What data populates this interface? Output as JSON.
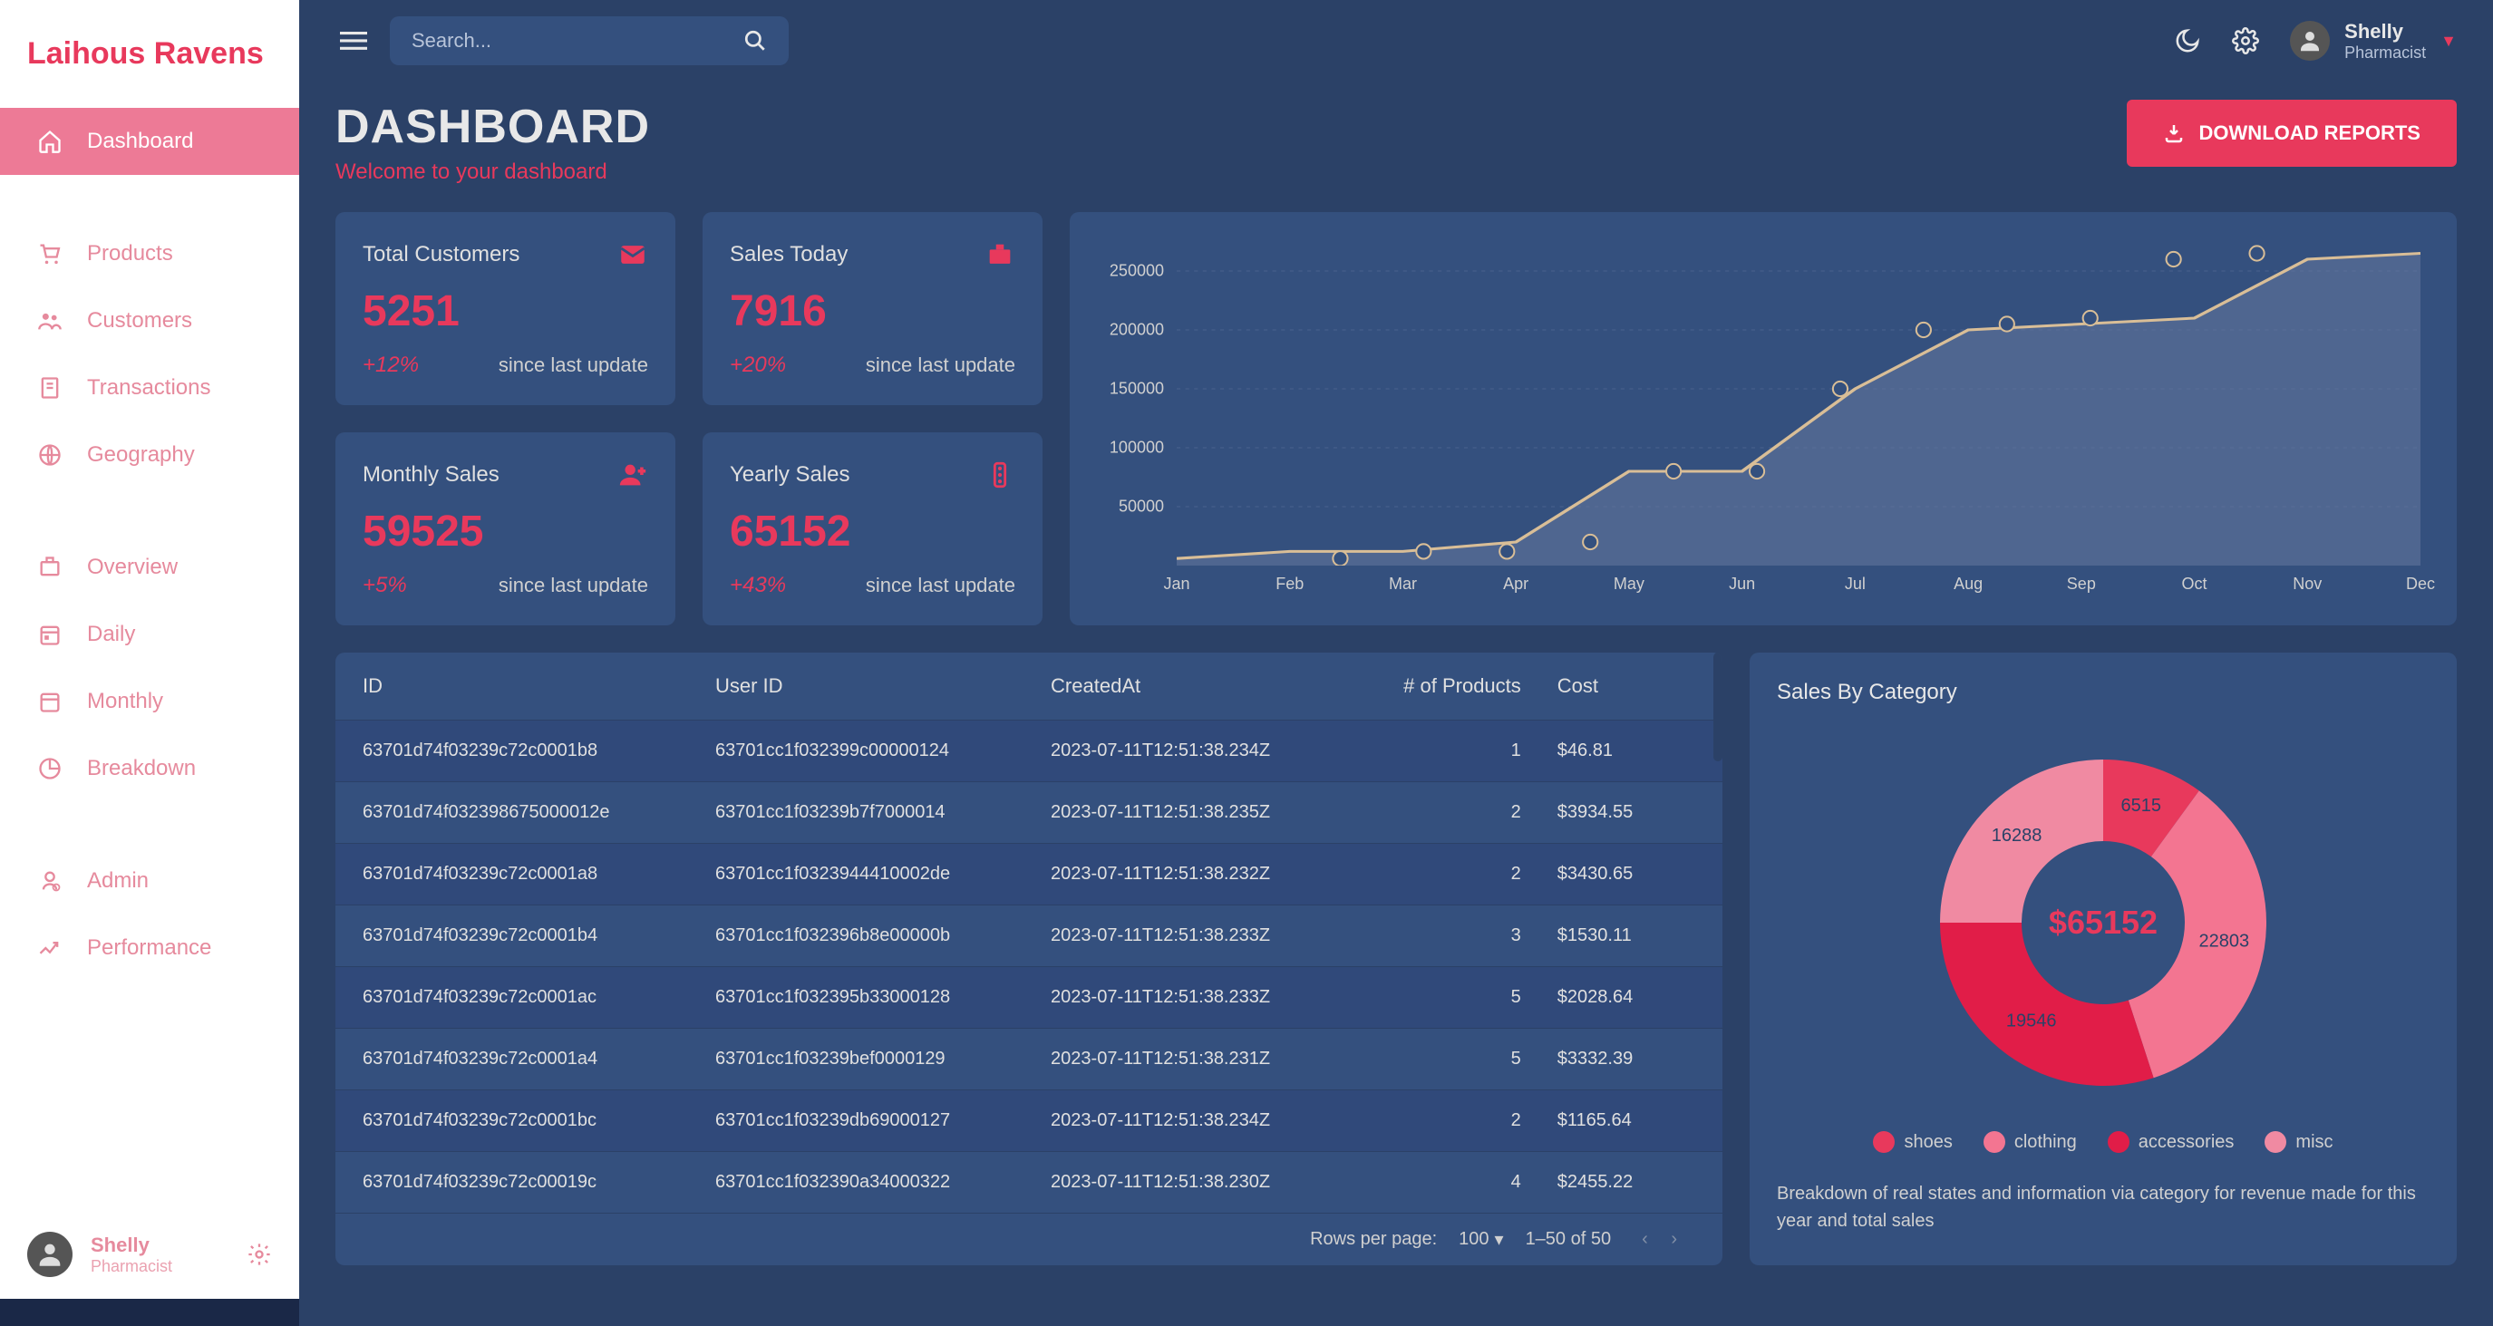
{
  "brand": "Laihous Ravens",
  "search": {
    "placeholder": "Search..."
  },
  "user": {
    "name": "Shelly",
    "role": "Pharmacist"
  },
  "nav": {
    "items": [
      {
        "label": "Dashboard",
        "icon": "home",
        "active": true
      },
      {
        "label": "Products",
        "icon": "cart"
      },
      {
        "label": "Customers",
        "icon": "people"
      },
      {
        "label": "Transactions",
        "icon": "receipt"
      },
      {
        "label": "Geography",
        "icon": "globe"
      },
      {
        "label": "Overview",
        "icon": "register"
      },
      {
        "label": "Daily",
        "icon": "calendar-today"
      },
      {
        "label": "Monthly",
        "icon": "calendar-month"
      },
      {
        "label": "Breakdown",
        "icon": "pie"
      },
      {
        "label": "Admin",
        "icon": "admin"
      },
      {
        "label": "Performance",
        "icon": "trend"
      }
    ],
    "spacerAfter": [
      0,
      4,
      8
    ]
  },
  "header": {
    "title": "DASHBOARD",
    "subtitle": "Welcome to your dashboard",
    "download": "DOWNLOAD REPORTS"
  },
  "stats": [
    {
      "label": "Total Customers",
      "value": "5251",
      "change": "+12%",
      "since": "since last update",
      "icon": "mail"
    },
    {
      "label": "Sales Today",
      "value": "7916",
      "change": "+20%",
      "since": "since last update",
      "icon": "register"
    },
    {
      "label": "Monthly Sales",
      "value": "59525",
      "change": "+5%",
      "since": "since last update",
      "icon": "person-add"
    },
    {
      "label": "Yearly Sales",
      "value": "65152",
      "change": "+43%",
      "since": "since last update",
      "icon": "traffic"
    }
  ],
  "lineChart": {
    "type": "area",
    "x": [
      "Jan",
      "Feb",
      "Mar",
      "Apr",
      "May",
      "Jun",
      "Jul",
      "Aug",
      "Sep",
      "Oct",
      "Nov",
      "Dec"
    ],
    "y": [
      6000,
      12000,
      12000,
      20000,
      80000,
      80000,
      150000,
      200000,
      205000,
      210000,
      260000,
      265000
    ],
    "ylim": [
      0,
      280000
    ],
    "yticks": [
      50000,
      100000,
      150000,
      200000,
      250000
    ],
    "line_color": "#d9be97",
    "fill_color": "#6a7ca1",
    "fill_opacity": 0.5,
    "marker": "circle",
    "marker_stroke": "#d9be97",
    "marker_fill": "#34507e",
    "grid_color": "#4a628f",
    "text_color": "#d0d0d0",
    "line_width": 3,
    "marker_size": 8
  },
  "table": {
    "columns": [
      "ID",
      "User ID",
      "CreatedAt",
      "# of Products",
      "Cost"
    ],
    "rows": [
      [
        "63701d74f03239c72c0001b8",
        "63701cc1f032399c00000124",
        "2023-07-11T12:51:38.234Z",
        "1",
        "$46.81"
      ],
      [
        "63701d74f032398675000012e",
        "63701cc1f03239b7f7000014",
        "2023-07-11T12:51:38.235Z",
        "2",
        "$3934.55"
      ],
      [
        "63701d74f03239c72c0001a8",
        "63701cc1f0323944410002de",
        "2023-07-11T12:51:38.232Z",
        "2",
        "$3430.65"
      ],
      [
        "63701d74f03239c72c0001b4",
        "63701cc1f032396b8e00000b",
        "2023-07-11T12:51:38.233Z",
        "3",
        "$1530.11"
      ],
      [
        "63701d74f03239c72c0001ac",
        "63701cc1f032395b33000128",
        "2023-07-11T12:51:38.233Z",
        "5",
        "$2028.64"
      ],
      [
        "63701d74f03239c72c0001a4",
        "63701cc1f03239bef0000129",
        "2023-07-11T12:51:38.231Z",
        "5",
        "$3332.39"
      ],
      [
        "63701d74f03239c72c0001bc",
        "63701cc1f03239db69000127",
        "2023-07-11T12:51:38.234Z",
        "2",
        "$1165.64"
      ],
      [
        "63701d74f03239c72c00019c",
        "63701cc1f032390a34000322",
        "2023-07-11T12:51:38.230Z",
        "4",
        "$2455.22"
      ]
    ],
    "alignments": [
      "left",
      "left",
      "left",
      "right",
      "left"
    ],
    "pager": {
      "rppLabel": "Rows per page:",
      "rpp": "100",
      "range": "1–50 of 50"
    }
  },
  "donut": {
    "title": "Sales By Category",
    "center": "$65152",
    "slices": [
      {
        "label": "shoes",
        "value": 6515,
        "color": "#e8395c"
      },
      {
        "label": "clothing",
        "value": 22803,
        "color": "#f37591"
      },
      {
        "label": "accessories",
        "value": 19546,
        "color": "#e11d48"
      },
      {
        "label": "misc",
        "value": 16288,
        "color": "#f08aa2"
      }
    ],
    "desc": "Breakdown of real states and information via category for revenue made for this year and total sales",
    "inner_radius": 0.5,
    "label_color": "#2b4167"
  },
  "colors": {
    "bg": "#2b4167",
    "card": "#34507e",
    "accent": "#e8395c",
    "sidebar": "#ffffff",
    "text": "#e8e8e8",
    "muted": "#d0d0d0"
  }
}
